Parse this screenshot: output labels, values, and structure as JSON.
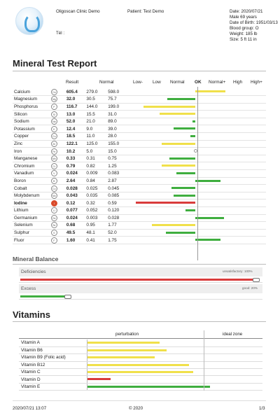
{
  "header": {
    "clinic": "Oligoscan Clinic Demo",
    "tel": "Tél :",
    "patient": "Patient: Test Demo",
    "date": "Date: 2020/07/21",
    "sex_age": "Male 69 years",
    "dob": "Date of Birth: 1951/03/13",
    "blood": "Blood group: O",
    "weight": "Weight: 185 lb",
    "size": "Size: 5 ft 11 in"
  },
  "report_title": "Mineral Test Report",
  "table_headers": {
    "result": "Result",
    "normal": "Normal",
    "low_minus": "Low-",
    "low": "Low",
    "normal_col": "Normal",
    "ok": "OK",
    "normal_plus": "Normal+",
    "high": "High",
    "high_plus": "High+"
  },
  "minerals": [
    {
      "name": "Calcium",
      "sym": "Ca",
      "result": "605.4",
      "min": "279.0",
      "max": "598.0",
      "dev": 0.55,
      "color": "#f0e04a"
    },
    {
      "name": "Magnesium",
      "sym": "Mg",
      "result": "32.0",
      "min": "30.5",
      "max": "75.7",
      "dev": -0.52,
      "color": "#3fae3f"
    },
    {
      "name": "Phosphorus",
      "sym": "P",
      "result": "116.7",
      "min": "144.0",
      "max": "199.0",
      "dev": -0.95,
      "color": "#f0e04a"
    },
    {
      "name": "Silicon",
      "sym": "Si",
      "result": "13.0",
      "min": "15.5",
      "max": "31.0",
      "dev": -0.66,
      "color": "#f0e04a"
    },
    {
      "name": "Sodium",
      "sym": "Na",
      "result": "52.0",
      "min": "21.0",
      "max": "89.0",
      "dev": -0.06,
      "color": "#3fae3f"
    },
    {
      "name": "Potassium",
      "sym": "K",
      "result": "12.4",
      "min": "9.0",
      "max": "39.0",
      "dev": -0.4,
      "color": "#3fae3f"
    },
    {
      "name": "Copper",
      "sym": "Cu",
      "result": "18.5",
      "min": "11.0",
      "max": "28.0",
      "dev": -0.1,
      "color": "#3fae3f"
    },
    {
      "name": "Zinc",
      "sym": "Zn",
      "result": "122.1",
      "min": "125.0",
      "max": "155.0",
      "dev": -0.62,
      "color": "#f0e04a"
    },
    {
      "name": "Iron",
      "sym": "Fe",
      "result": "10.2",
      "min": "5.0",
      "max": "15.0",
      "dev": 0,
      "color": "#3fae3f"
    },
    {
      "name": "Manganese",
      "sym": "Mn",
      "result": "0.33",
      "min": "0.31",
      "max": "0.75",
      "dev": -0.48,
      "color": "#3fae3f"
    },
    {
      "name": "Chromium",
      "sym": "Cr",
      "result": "0.79",
      "min": "0.82",
      "max": "1.25",
      "dev": -0.62,
      "color": "#f0e04a"
    },
    {
      "name": "Vanadium",
      "sym": "V",
      "result": "0.024",
      "min": "0.009",
      "max": "0.083",
      "dev": -0.35,
      "color": "#3fae3f"
    },
    {
      "name": "Boron",
      "sym": "B",
      "result": "2.64",
      "min": "0.84",
      "max": "2.87",
      "dev": 0.45,
      "color": "#3fae3f"
    },
    {
      "name": "Cobalt",
      "sym": "Co",
      "result": "0.028",
      "min": "0.025",
      "max": "0.045",
      "dev": -0.44,
      "color": "#3fae3f"
    },
    {
      "name": "Molybdenum",
      "sym": "Mo",
      "result": "0.043",
      "min": "0.035",
      "max": "0.085",
      "dev": -0.4,
      "color": "#3fae3f"
    },
    {
      "name": "Iodine",
      "sym": "I",
      "result": "0.12",
      "min": "0.32",
      "max": "0.59",
      "dev": -1.1,
      "color": "#d93b3b",
      "alert": true
    },
    {
      "name": "Lithium",
      "sym": "Li",
      "result": "0.077",
      "min": "0.052",
      "max": "0.120",
      "dev": -0.18,
      "color": "#3fae3f"
    },
    {
      "name": "Germanium",
      "sym": "Ge",
      "result": "0.024",
      "min": "0.003",
      "max": "0.028",
      "dev": 0.52,
      "color": "#3fae3f"
    },
    {
      "name": "Selenium",
      "sym": "Se",
      "result": "0.68",
      "min": "0.95",
      "max": "1.77",
      "dev": -0.8,
      "color": "#f0e04a"
    },
    {
      "name": "Sulphur",
      "sym": "S",
      "result": "49.5",
      "min": "48.1",
      "max": "52.0",
      "dev": -0.55,
      "color": "#3fae3f"
    },
    {
      "name": "Fluor",
      "sym": "F",
      "result": "1.60",
      "min": "0.41",
      "max": "1.75",
      "dev": 0.45,
      "color": "#3fae3f"
    }
  ],
  "balance": {
    "title": "Mineral Balance",
    "deficiencies_label": "Deficiencies",
    "deficiencies_note": "unsatisfactory: 100%",
    "deficiencies_value": 1.0,
    "excess_label": "Excess",
    "excess_note": "good: 20%",
    "excess_value": 0.2
  },
  "vitamins_title": "Vitamins",
  "vitamin_headers": {
    "perturbation": "perturbation",
    "ideal": "ideal zone"
  },
  "vitamins": [
    {
      "name": "Vitamin A",
      "value": 0.62,
      "color": "#f0e04a"
    },
    {
      "name": "Vitamin B6",
      "value": 0.68,
      "color": "#f0e04a"
    },
    {
      "name": "Vitamin B9 (Folic acid)",
      "value": 0.58,
      "color": "#f0e04a"
    },
    {
      "name": "Vitamin B12",
      "value": 0.87,
      "color": "#f0e04a"
    },
    {
      "name": "Vitamin C",
      "value": 0.91,
      "color": "#f0e04a"
    },
    {
      "name": "Vitamin D",
      "value": 0.2,
      "color": "#d93b3b"
    },
    {
      "name": "Vitamin E",
      "value": 1.05,
      "color": "#3fae3f"
    }
  ],
  "footer": {
    "datetime": "2020/07/21 13:07",
    "copyright": "© 2020",
    "page": "1/3"
  }
}
